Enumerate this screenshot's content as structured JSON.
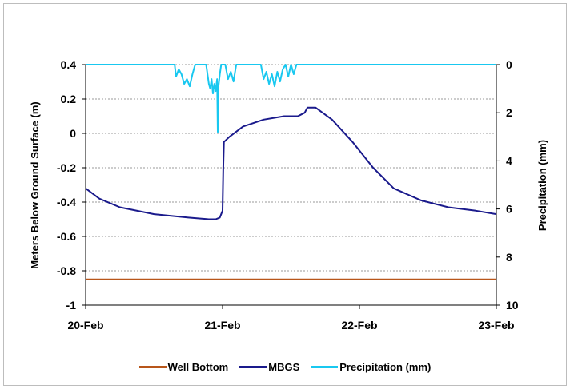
{
  "chart_data": {
    "type": "line",
    "x_ticks": [
      "20-Feb",
      "21-Feb",
      "22-Feb",
      "23-Feb"
    ],
    "y_left": {
      "label": "Meters Below Ground Surface (m)",
      "ylim": [
        -1,
        0.4
      ],
      "ticks": [
        "0.4",
        "0.2",
        "0",
        "-0.2",
        "-0.4",
        "-0.6",
        "-0.8",
        "-1"
      ]
    },
    "y_right": {
      "label": "Precipitation (mm)",
      "ylim": [
        0,
        10
      ],
      "inverted": true,
      "ticks": [
        "0",
        "2",
        "4",
        "6",
        "8",
        "10"
      ]
    },
    "grid": "horizontal dotted",
    "legend_position": "bottom",
    "series": [
      {
        "name": "Well Bottom",
        "axis": "left",
        "color": "#b8561a",
        "points": [
          [
            0,
            -0.85
          ],
          [
            3,
            -0.85
          ]
        ]
      },
      {
        "name": "MBGS",
        "axis": "left",
        "color": "#1a1a8c",
        "points": [
          [
            0,
            -0.32
          ],
          [
            0.1,
            -0.38
          ],
          [
            0.25,
            -0.43
          ],
          [
            0.5,
            -0.47
          ],
          [
            0.75,
            -0.49
          ],
          [
            0.9,
            -0.5
          ],
          [
            0.95,
            -0.5
          ],
          [
            0.98,
            -0.49
          ],
          [
            1.0,
            -0.45
          ],
          [
            1.005,
            -0.2
          ],
          [
            1.01,
            -0.05
          ],
          [
            1.05,
            -0.02
          ],
          [
            1.15,
            0.04
          ],
          [
            1.3,
            0.08
          ],
          [
            1.45,
            0.1
          ],
          [
            1.55,
            0.1
          ],
          [
            1.6,
            0.12
          ],
          [
            1.62,
            0.15
          ],
          [
            1.68,
            0.15
          ],
          [
            1.8,
            0.08
          ],
          [
            1.95,
            -0.05
          ],
          [
            2.1,
            -0.2
          ],
          [
            2.25,
            -0.32
          ],
          [
            2.45,
            -0.39
          ],
          [
            2.65,
            -0.43
          ],
          [
            2.85,
            -0.45
          ],
          [
            3.0,
            -0.47
          ]
        ]
      },
      {
        "name": "Precipitation (mm)",
        "axis": "right",
        "color": "#19c8f0",
        "points": [
          [
            0,
            0
          ],
          [
            0.65,
            0
          ],
          [
            0.66,
            0.5
          ],
          [
            0.68,
            0.2
          ],
          [
            0.7,
            0.4
          ],
          [
            0.72,
            0.8
          ],
          [
            0.74,
            0.6
          ],
          [
            0.76,
            0.9
          ],
          [
            0.78,
            0.4
          ],
          [
            0.8,
            0
          ],
          [
            0.88,
            0
          ],
          [
            0.9,
            0.8
          ],
          [
            0.91,
            1.0
          ],
          [
            0.92,
            0.6
          ],
          [
            0.93,
            1.2
          ],
          [
            0.94,
            0.8
          ],
          [
            0.95,
            1.1
          ],
          [
            0.96,
            0.6
          ],
          [
            0.965,
            2.8
          ],
          [
            0.97,
            0.9
          ],
          [
            0.98,
            0.4
          ],
          [
            0.99,
            0
          ],
          [
            1.02,
            0
          ],
          [
            1.04,
            0.6
          ],
          [
            1.06,
            0.3
          ],
          [
            1.08,
            0.7
          ],
          [
            1.1,
            0
          ],
          [
            1.28,
            0
          ],
          [
            1.3,
            0.6
          ],
          [
            1.32,
            0.3
          ],
          [
            1.34,
            0.8
          ],
          [
            1.36,
            0.4
          ],
          [
            1.38,
            0.9
          ],
          [
            1.4,
            0.3
          ],
          [
            1.42,
            0.7
          ],
          [
            1.44,
            0.2
          ],
          [
            1.46,
            0
          ],
          [
            1.48,
            0.5
          ],
          [
            1.5,
            0
          ],
          [
            1.52,
            0.4
          ],
          [
            1.54,
            0
          ],
          [
            1.65,
            0
          ],
          [
            3.0,
            0
          ]
        ]
      }
    ]
  }
}
